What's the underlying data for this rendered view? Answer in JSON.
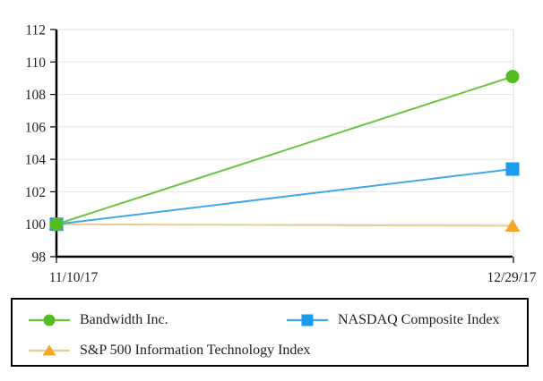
{
  "chart_data": {
    "type": "line",
    "title": "",
    "xlabel": "",
    "ylabel": "",
    "categories": [
      "11/10/17",
      "12/29/17"
    ],
    "ylim": [
      98,
      112
    ],
    "ytick_step": 2,
    "yticks": [
      98,
      100,
      102,
      104,
      106,
      108,
      110,
      112
    ],
    "grid": "horizontal light gridlines at each y tick plus vertical line at right plot edge",
    "legend_position": "boxed legend below plot",
    "series": [
      {
        "name": "Bandwidth Inc.",
        "values": [
          100,
          109.1
        ],
        "marker": "circle",
        "marker_color": "#53BC21",
        "line_color": "#6CC43C"
      },
      {
        "name": "NASDAQ Composite Index",
        "values": [
          100,
          103.4
        ],
        "marker": "square",
        "marker_color": "#1B9CEC",
        "line_color": "#3FA8EC"
      },
      {
        "name": "S&P 500 Information Technology Index",
        "values": [
          100,
          99.9
        ],
        "marker": "triangle",
        "marker_color": "#F6A723",
        "line_color": "#EDCD8C"
      }
    ],
    "axis_color": "#000000",
    "gridline_color": "#E5E5E5",
    "text_color": "#1F1F1F"
  }
}
